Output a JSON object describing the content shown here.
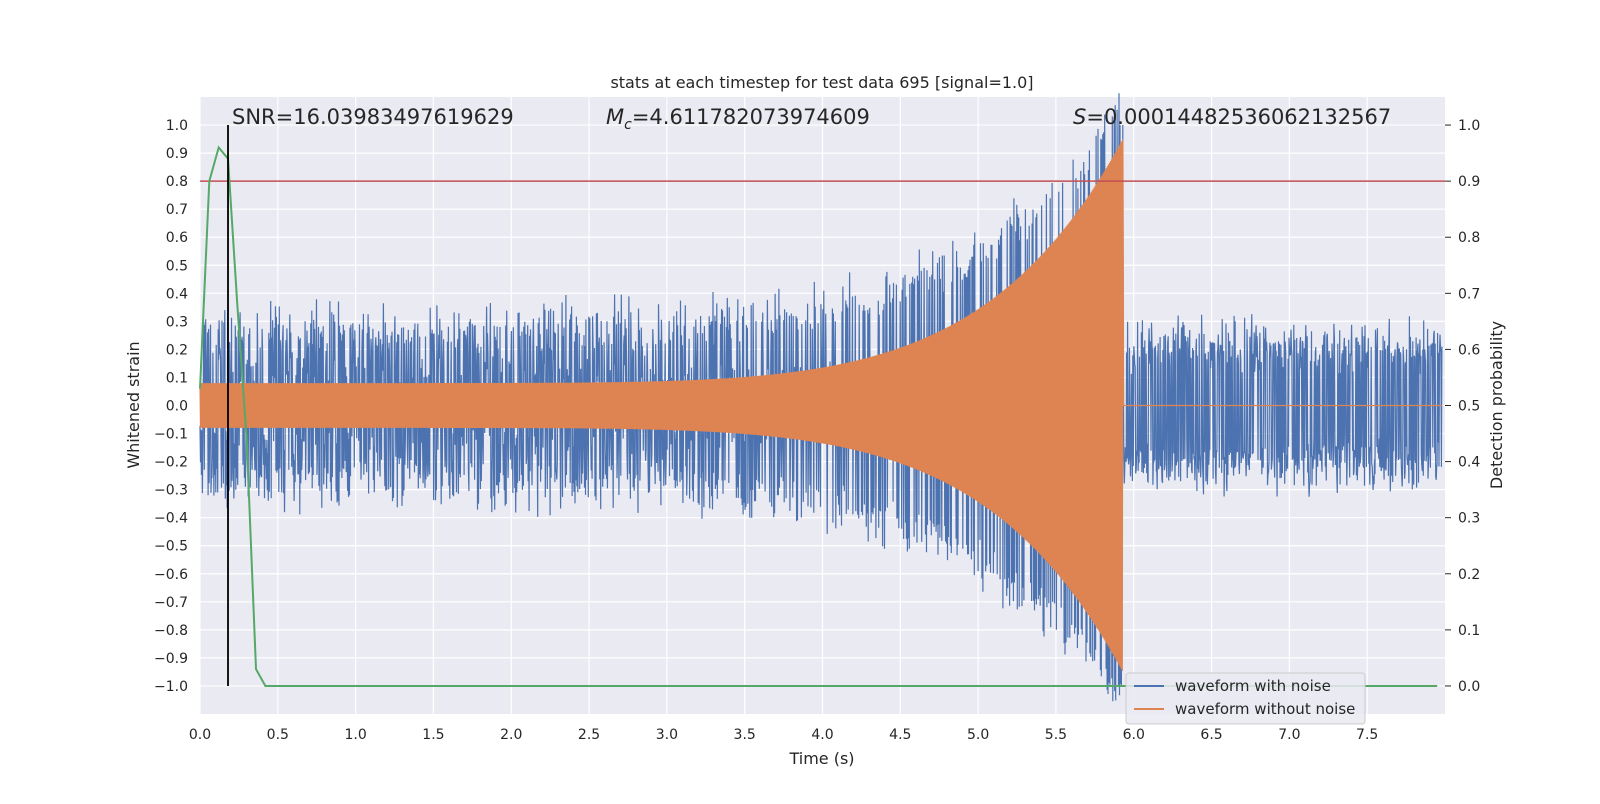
{
  "chart_data": {
    "type": "line",
    "title": "stats at each timestep for test data 695 [signal=1.0]",
    "xlabel": "Time (s)",
    "ylabel_left": "Whitened strain",
    "ylabel_right": "Detection probability",
    "xlim": [
      0.0,
      8.0
    ],
    "ylim_left": [
      -1.1,
      1.1
    ],
    "ylim_right": [
      -0.05,
      1.05
    ],
    "x_ticks": [
      "0.0",
      "0.5",
      "1.0",
      "1.5",
      "2.0",
      "2.5",
      "3.0",
      "3.5",
      "4.0",
      "4.5",
      "5.0",
      "5.5",
      "6.0",
      "6.5",
      "7.0",
      "7.5"
    ],
    "y_left_ticks": [
      "1.0",
      "0.9",
      "0.8",
      "0.7",
      "0.6",
      "0.5",
      "0.4",
      "0.3",
      "0.2",
      "0.1",
      "0.0",
      "−0.1",
      "−0.2",
      "−0.3",
      "−0.4",
      "−0.5",
      "−0.6",
      "−0.7",
      "−0.8",
      "−0.9",
      "−1.0"
    ],
    "y_right_ticks": [
      "1.0",
      "0.9",
      "0.8",
      "0.7",
      "0.6",
      "0.5",
      "0.4",
      "0.3",
      "0.2",
      "0.1",
      "0.0"
    ],
    "annotations": {
      "snr": "SNR=16.03983497619629",
      "mc_prefix": "M",
      "mc_sub": "c",
      "mc_value": "=4.611782073974609",
      "s_prefix": "S",
      "s_value": "=0.00014482536062132567"
    },
    "threshold_line": {
      "y_right": 0.9,
      "color": "#c44e52"
    },
    "detection_marker": {
      "x": 0.18,
      "color": "#000000"
    },
    "merger_time": 5.93,
    "series": [
      {
        "name": "waveform with noise",
        "color": "#4c72b0",
        "envelope_desc": "noise amplitude approx",
        "noise_amp": 0.33
      },
      {
        "name": "waveform without noise",
        "color": "#dd8452",
        "amplitude_start": 0.08,
        "amplitude_peak": 0.95
      },
      {
        "color": "#55a868",
        "x": [
          0.0,
          0.06,
          0.12,
          0.18,
          0.24,
          0.3,
          0.36,
          0.42,
          7.95
        ],
        "y": [
          0.53,
          0.9,
          0.96,
          0.94,
          0.68,
          0.44,
          0.03,
          0.0,
          0.0
        ]
      }
    ],
    "legend_position": "lower-right",
    "grid": true,
    "background": "#eaeaf2"
  }
}
